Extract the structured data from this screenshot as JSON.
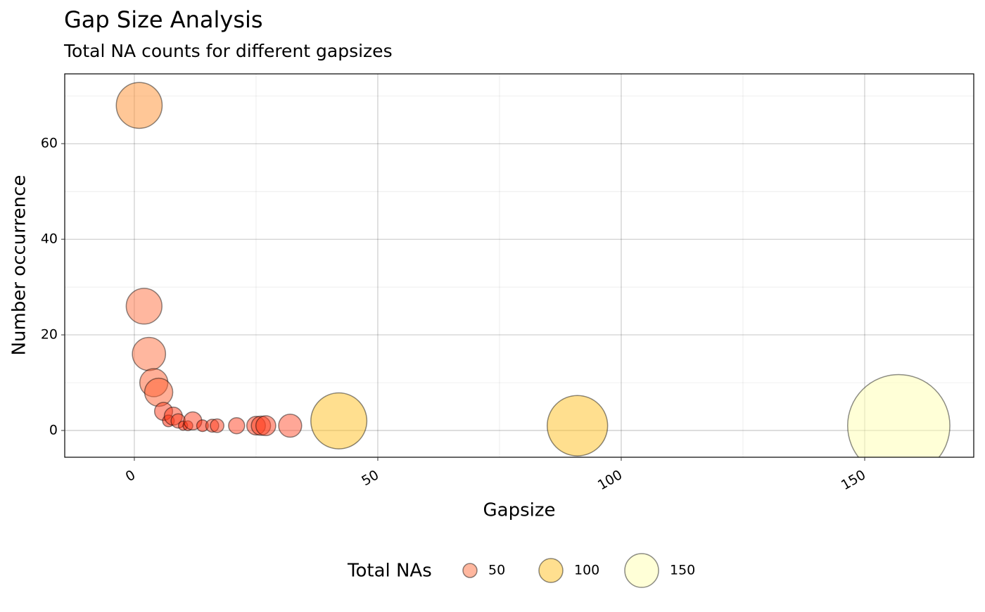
{
  "chart_data": {
    "type": "scatter",
    "title": "Gap Size Analysis",
    "subtitle": "Total NA counts for different gapsizes",
    "x_label": "Gapsize",
    "y_label": "Number occurrence",
    "legend_title": "Total NAs",
    "legend_position": "bottom",
    "grid": true,
    "xlim": [
      -14.3,
      172.4
    ],
    "ylim": [
      -5.6,
      74.6
    ],
    "xticks": [
      0,
      50,
      100,
      150
    ],
    "yticks": [
      0,
      20,
      40,
      60
    ],
    "x_minor_ticks": [
      25,
      75,
      125
    ],
    "y_minor_ticks": [
      10,
      30,
      50,
      70
    ],
    "series": [
      {
        "name": "Total NAs",
        "x": [
          1,
          2,
          3,
          4,
          5,
          6,
          7,
          8,
          9,
          10,
          11,
          12,
          14,
          16,
          17,
          21,
          25,
          26,
          27,
          32,
          42,
          91,
          157
        ],
        "values": [
          68,
          26,
          16,
          10,
          8,
          4,
          2,
          3,
          2,
          1,
          1,
          2,
          1,
          1,
          1,
          1,
          1,
          1,
          1,
          1,
          2,
          1,
          1
        ],
        "sizes": [
          68,
          52,
          48,
          40,
          40,
          24,
          14,
          24,
          18,
          10,
          11,
          24,
          14,
          16,
          17,
          21,
          25,
          26,
          27,
          32,
          84,
          91,
          157
        ],
        "colors": [
          "#FF9030",
          "#FF7040",
          "#FF7040",
          "#FF6030",
          "#FF6030",
          "#FF4020",
          "#FF2000",
          "#FF4020",
          "#FF4020",
          "#FF2000",
          "#FF2000",
          "#FF4020",
          "#FF2000",
          "#FF4020",
          "#FF4020",
          "#FF4020",
          "#FF4020",
          "#FF4020",
          "#FF4020",
          "#FF5030",
          "#FFC020",
          "#FFC020",
          "#FFFFB0"
        ]
      }
    ],
    "legend_sizes": [
      50,
      100,
      150
    ],
    "legend_colors": [
      "#FF7040",
      "#FFC020",
      "#FFFFB0"
    ]
  }
}
